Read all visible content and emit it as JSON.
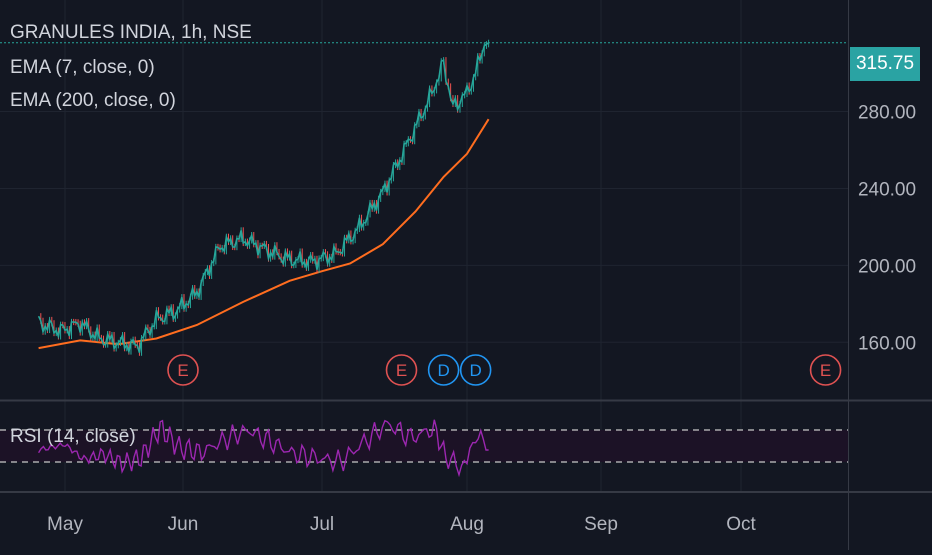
{
  "header": {
    "symbol_title": "GRANULES INDIA, 1h, NSE",
    "ema_fast_label": "EMA (7, close, 0)",
    "ema_slow_label": "EMA (200, close, 0)",
    "rsi_label": "RSI (14, close)"
  },
  "last_price": {
    "label": "315.75",
    "value": 315.75,
    "color": "#2aa3a3"
  },
  "colors": {
    "background": "#131722",
    "grid": "#1f2430",
    "separator": "#363a45",
    "candle_up": "#26a69a",
    "candle_down": "#ef5350",
    "ema_slow": "#ff6d1f",
    "rsi_line": "#9c27b0",
    "rsi_band": "#1c1226",
    "earnings_marker": "#e05252",
    "dividend_marker": "#2196f3",
    "axis_text": "#b2b5be"
  },
  "chart_data": {
    "type": "line",
    "title": "",
    "price_axis": {
      "ticks": [
        "280.00",
        "240.00",
        "200.00",
        "160.00"
      ],
      "ylim": [
        130,
        338
      ]
    },
    "time_axis": {
      "ticks": [
        "May",
        "Jun",
        "Jul",
        "Aug",
        "Sep",
        "Oct"
      ]
    },
    "series": [
      {
        "name": "EMA (7, close, 0)",
        "x": [
          "Apr 25",
          "Apr 30",
          "May 5",
          "May 10",
          "May 15",
          "May 20",
          "May 25",
          "May 30",
          "Jun 4",
          "Jun 9",
          "Jun 14",
          "Jun 19",
          "Jun 24",
          "Jun 29",
          "Jul 4",
          "Jul 9",
          "Jul 14",
          "Jul 19",
          "Jul 24",
          "Jul 27",
          "Jul 29",
          "Aug 1",
          "Aug 3",
          "Aug 5",
          "Aug 6"
        ],
        "values": [
          170,
          166,
          170,
          162,
          160,
          158,
          172,
          176,
          186,
          210,
          214,
          208,
          203,
          202,
          206,
          220,
          238,
          262,
          287,
          305,
          282,
          290,
          300,
          316,
          315.75
        ]
      },
      {
        "name": "EMA (200, close, 0)",
        "x": [
          "Apr 25",
          "May 5",
          "May 15",
          "May 25",
          "Jun 4",
          "Jun 14",
          "Jun 24",
          "Jul 1",
          "Jul 7",
          "Jul 14",
          "Jul 21",
          "Jul 27",
          "Aug 1",
          "Aug 6"
        ],
        "values": [
          157,
          161,
          159,
          162,
          169,
          181,
          192,
          197,
          201,
          211,
          228,
          246,
          258,
          276
        ]
      },
      {
        "name": "RSI (14, close)",
        "x": [
          "Apr 25",
          "May 1",
          "May 6",
          "May 11",
          "May 16",
          "May 21",
          "May 26",
          "May 31",
          "Jun 5",
          "Jun 10",
          "Jun 15",
          "Jun 20",
          "Jun 25",
          "Jun 30",
          "Jul 5",
          "Jul 10",
          "Jul 15",
          "Jul 20",
          "Jul 25",
          "Jul 28",
          "Aug 1",
          "Aug 3",
          "Aug 6"
        ],
        "values": [
          45,
          52,
          33,
          40,
          28,
          35,
          73,
          48,
          42,
          58,
          70,
          55,
          40,
          35,
          30,
          55,
          78,
          60,
          72,
          30,
          25,
          68,
          45
        ]
      }
    ],
    "rsi_band": [
      30,
      70
    ],
    "event_markers": [
      {
        "letter": "E",
        "kind": "earnings",
        "date": "Jun 1"
      },
      {
        "letter": "E",
        "kind": "earnings",
        "date": "Jul 18"
      },
      {
        "letter": "D",
        "kind": "dividend",
        "date": "Jul 27"
      },
      {
        "letter": "D",
        "kind": "dividend",
        "date": "Aug 3"
      },
      {
        "letter": "E",
        "kind": "earnings",
        "date": "Oct 20"
      }
    ],
    "grid": true
  }
}
